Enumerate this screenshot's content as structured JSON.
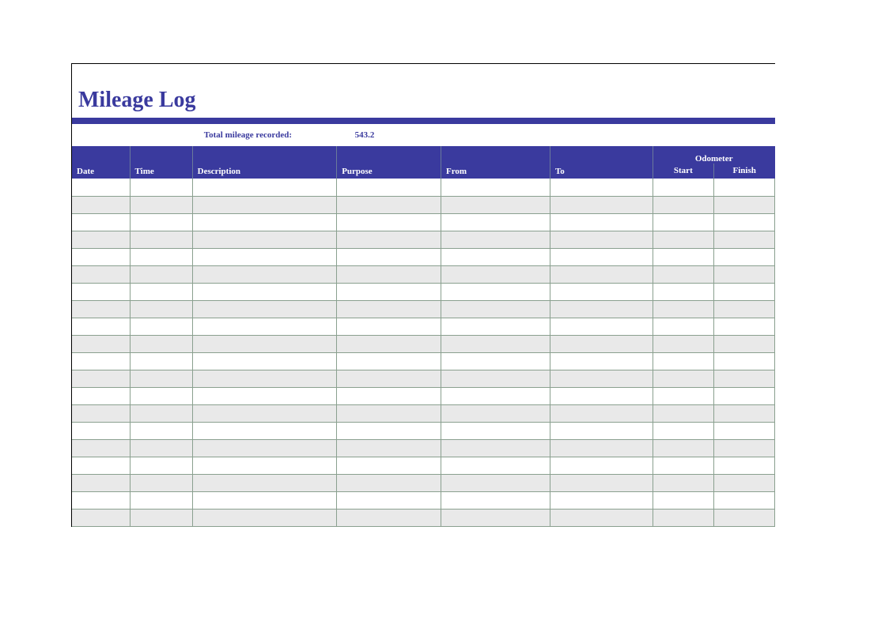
{
  "title": "Mileage Log",
  "colors": {
    "accent": "#3a3a9e",
    "header_bg": "#3a3a9e",
    "header_text": "#ffffff",
    "grid_border": "#8aa08f",
    "row_odd_bg": "#e9e9e9",
    "row_even_bg": "#ffffff",
    "page_bg": "#ffffff"
  },
  "summary": {
    "label": "Total mileage recorded:",
    "value": "543.2"
  },
  "table": {
    "type": "table",
    "odometer_group_label": "Odometer",
    "columns": {
      "date": "Date",
      "time": "Time",
      "description": "Description",
      "purpose": "Purpose",
      "from": "From",
      "to": "To",
      "start": "Start",
      "finish": "Finish"
    },
    "row_count": 20,
    "rows": [
      [
        "",
        "",
        "",
        "",
        "",
        "",
        "",
        ""
      ],
      [
        "",
        "",
        "",
        "",
        "",
        "",
        "",
        ""
      ],
      [
        "",
        "",
        "",
        "",
        "",
        "",
        "",
        ""
      ],
      [
        "",
        "",
        "",
        "",
        "",
        "",
        "",
        ""
      ],
      [
        "",
        "",
        "",
        "",
        "",
        "",
        "",
        ""
      ],
      [
        "",
        "",
        "",
        "",
        "",
        "",
        "",
        ""
      ],
      [
        "",
        "",
        "",
        "",
        "",
        "",
        "",
        ""
      ],
      [
        "",
        "",
        "",
        "",
        "",
        "",
        "",
        ""
      ],
      [
        "",
        "",
        "",
        "",
        "",
        "",
        "",
        ""
      ],
      [
        "",
        "",
        "",
        "",
        "",
        "",
        "",
        ""
      ],
      [
        "",
        "",
        "",
        "",
        "",
        "",
        "",
        ""
      ],
      [
        "",
        "",
        "",
        "",
        "",
        "",
        "",
        ""
      ],
      [
        "",
        "",
        "",
        "",
        "",
        "",
        "",
        ""
      ],
      [
        "",
        "",
        "",
        "",
        "",
        "",
        "",
        ""
      ],
      [
        "",
        "",
        "",
        "",
        "",
        "",
        "",
        ""
      ],
      [
        "",
        "",
        "",
        "",
        "",
        "",
        "",
        ""
      ],
      [
        "",
        "",
        "",
        "",
        "",
        "",
        "",
        ""
      ],
      [
        "",
        "",
        "",
        "",
        "",
        "",
        "",
        ""
      ],
      [
        "",
        "",
        "",
        "",
        "",
        "",
        "",
        ""
      ],
      [
        "",
        "",
        "",
        "",
        "",
        "",
        "",
        ""
      ]
    ]
  }
}
